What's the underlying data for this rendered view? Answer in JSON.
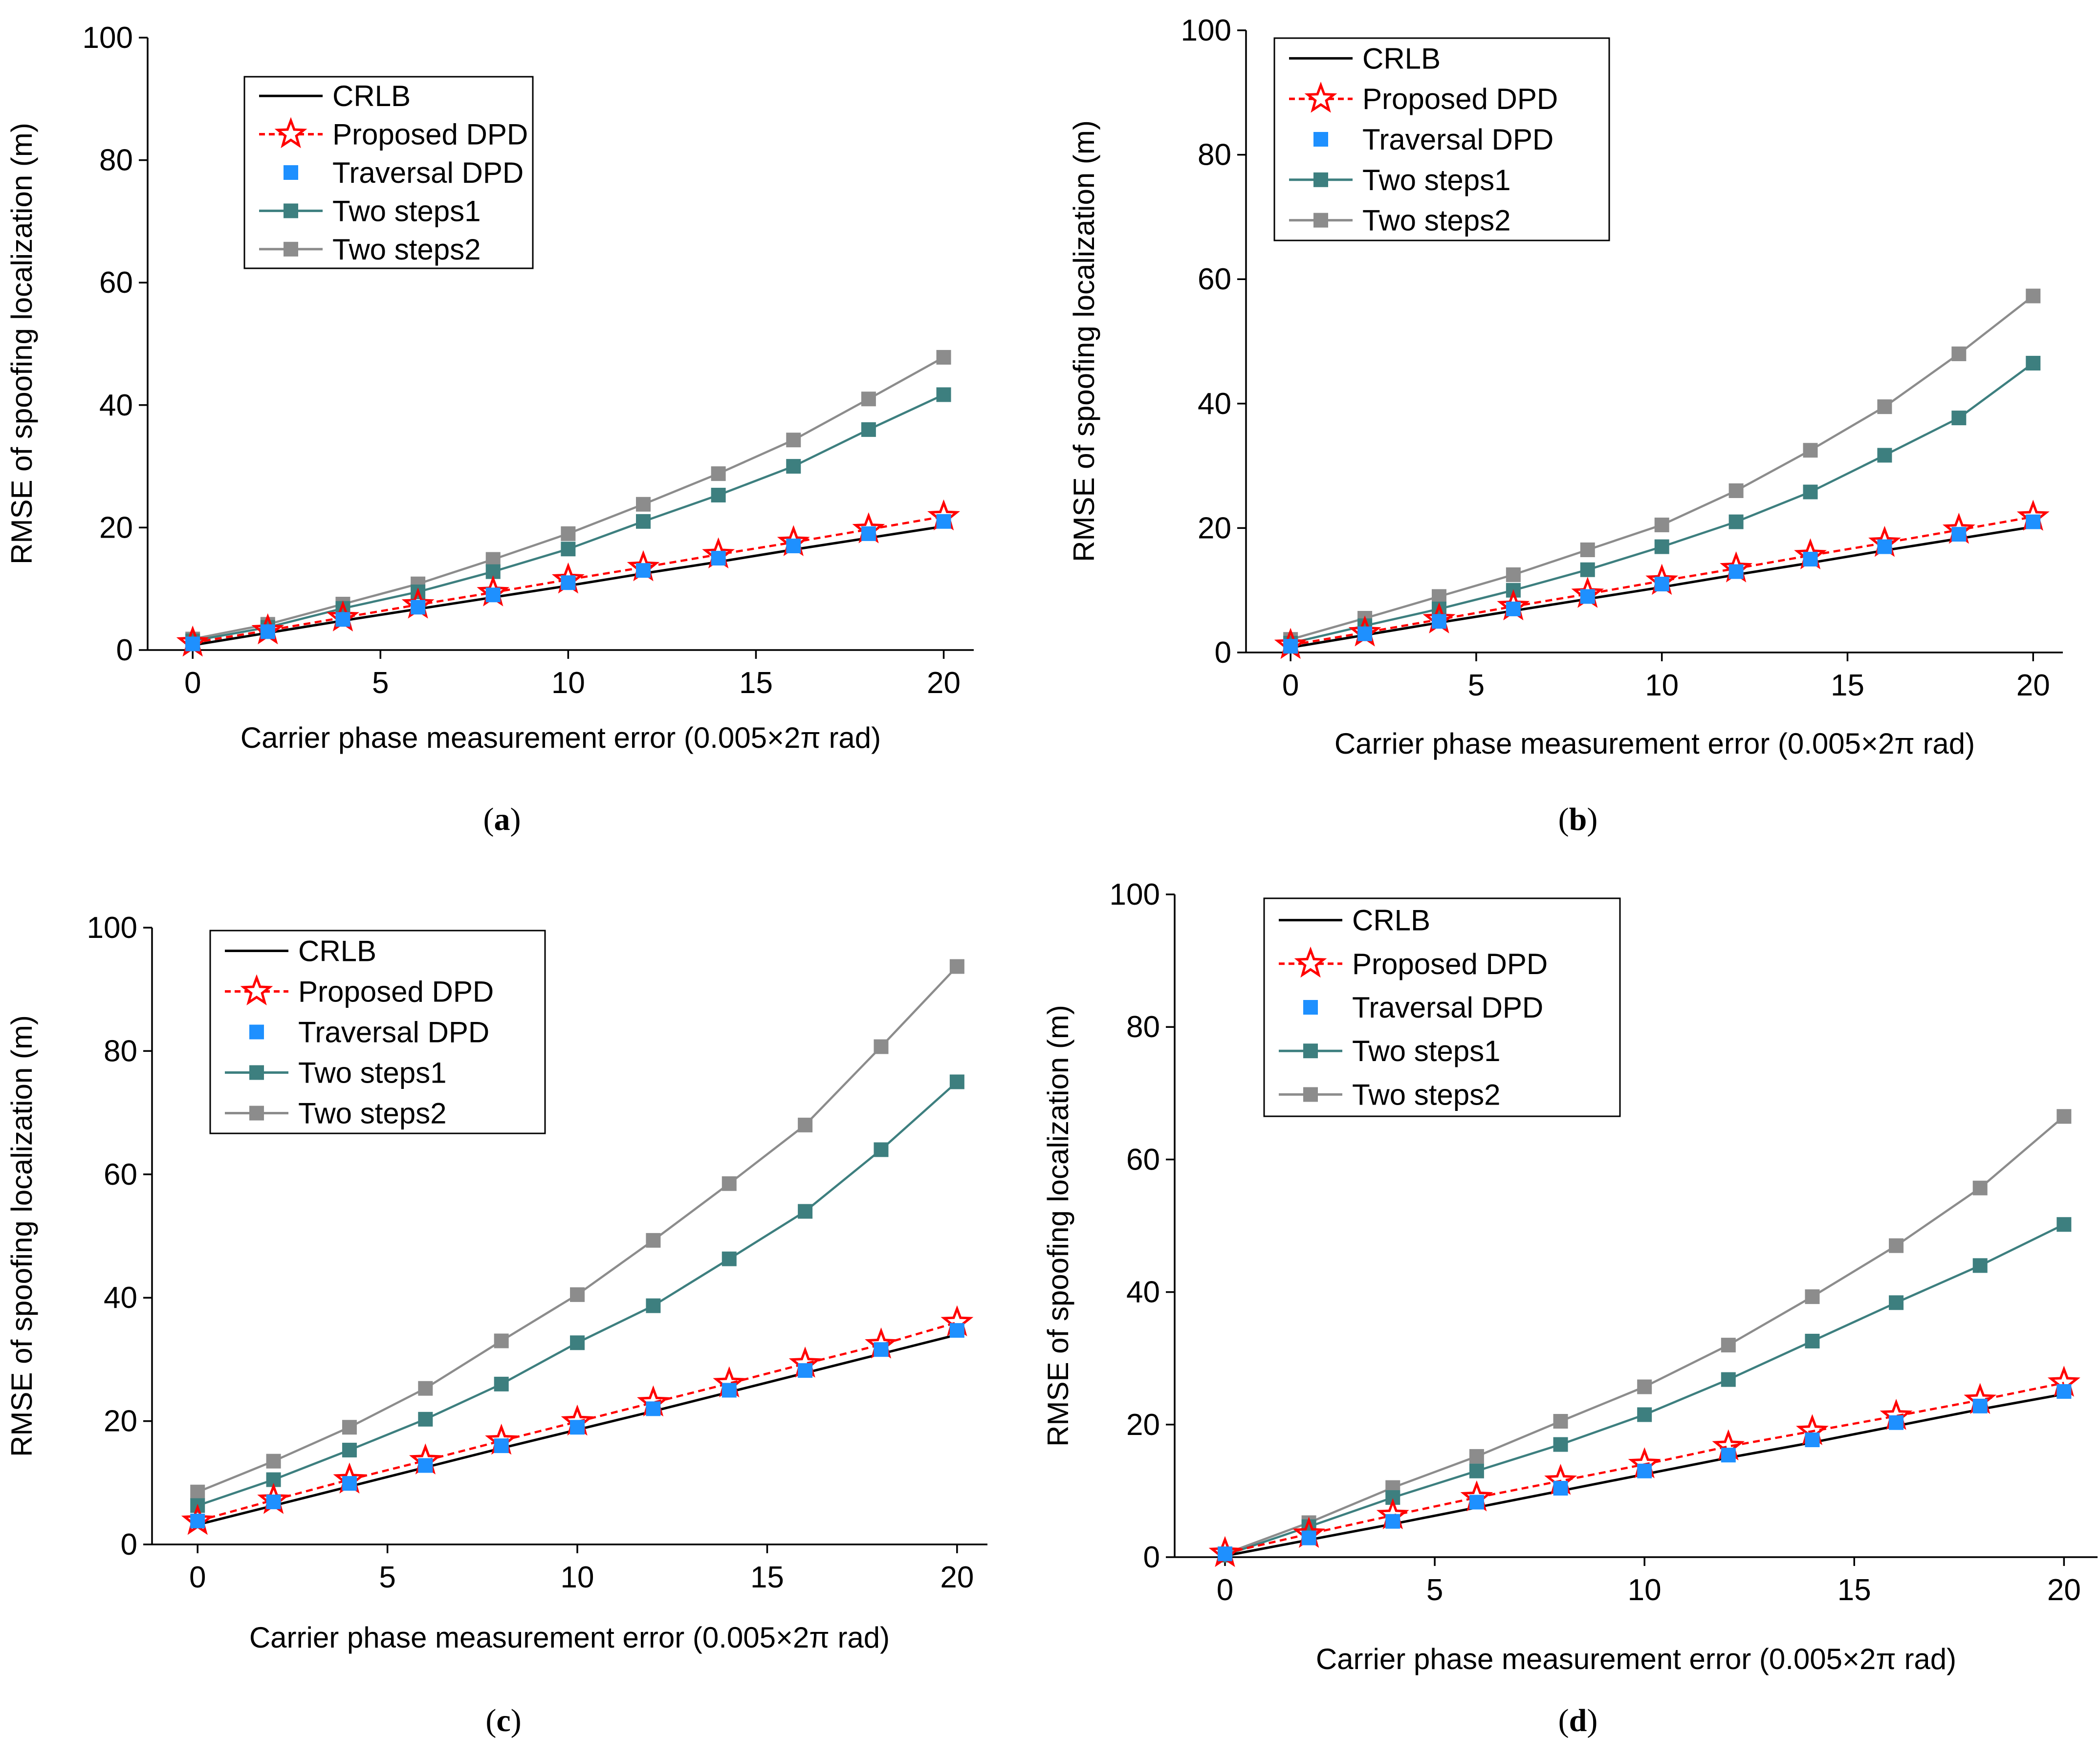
{
  "series_styles": [
    {
      "name": "CRLB",
      "color": "#000000",
      "marker": "none",
      "dash": false
    },
    {
      "name": "Proposed DPD",
      "color": "#ff0000",
      "marker": "star",
      "dash": true
    },
    {
      "name": "Traversal DPD",
      "color": "#1e90ff",
      "marker": "square-only",
      "dash": false
    },
    {
      "name": "Two steps1",
      "color": "#3d7f7f",
      "marker": "square",
      "dash": false
    },
    {
      "name": "Two steps2",
      "color": "#8c8c8c",
      "marker": "square",
      "dash": false
    }
  ],
  "chart_data": [
    {
      "panel": "a",
      "caption_letter": "a",
      "type": "line",
      "xlabel": "Carrier phase measurement error (0.005×2π rad)",
      "ylabel": "RMSE of spoofing localization (m)",
      "xlim": [
        -1.2,
        20.8
      ],
      "ylim": [
        0,
        100
      ],
      "xticks": [
        0,
        5,
        10,
        15,
        20
      ],
      "yticks": [
        0,
        20,
        40,
        60,
        80,
        100
      ],
      "legend_position": "top-left",
      "x": [
        0,
        2,
        4,
        6,
        8,
        10,
        12,
        14,
        16,
        18,
        20
      ],
      "series": [
        {
          "name": "CRLB",
          "values": [
            0.8,
            2.8,
            4.8,
            6.7,
            8.6,
            10.5,
            12.5,
            14.4,
            16.4,
            18.3,
            20.2
          ]
        },
        {
          "name": "Proposed DPD",
          "values": [
            1.2,
            3.2,
            5.3,
            7.4,
            9.4,
            11.5,
            13.5,
            15.6,
            17.6,
            19.7,
            21.8
          ]
        },
        {
          "name": "Traversal DPD",
          "values": [
            1.0,
            3.0,
            5.0,
            7.0,
            9.0,
            11.0,
            13.0,
            15.0,
            17.0,
            19.0,
            21.0
          ]
        },
        {
          "name": "Two steps1",
          "values": [
            1.5,
            3.7,
            6.8,
            9.5,
            12.8,
            16.5,
            21.0,
            25.3,
            30.0,
            36.0,
            41.7
          ]
        },
        {
          "name": "Two steps2",
          "values": [
            1.8,
            4.2,
            7.5,
            10.8,
            14.8,
            19.0,
            23.8,
            28.8,
            34.3,
            41.0,
            47.8
          ]
        }
      ]
    },
    {
      "panel": "b",
      "caption_letter": "b",
      "type": "line",
      "xlabel": "Carrier phase measurement error (0.005×2π rad)",
      "ylabel": "RMSE of spoofing localization (m)",
      "xlim": [
        -1.2,
        20.8
      ],
      "ylim": [
        0,
        100
      ],
      "xticks": [
        0,
        5,
        10,
        15,
        20
      ],
      "yticks": [
        0,
        20,
        40,
        60,
        80,
        100
      ],
      "legend_position": "top-left",
      "x": [
        0,
        2,
        4,
        6,
        8,
        10,
        12,
        14,
        16,
        18,
        20
      ],
      "series": [
        {
          "name": "CRLB",
          "values": [
            0.8,
            2.8,
            4.8,
            6.7,
            8.6,
            10.5,
            12.5,
            14.4,
            16.4,
            18.3,
            20.2
          ]
        },
        {
          "name": "Proposed DPD",
          "values": [
            1.2,
            3.2,
            5.3,
            7.4,
            9.4,
            11.5,
            13.5,
            15.6,
            17.6,
            19.7,
            21.8
          ]
        },
        {
          "name": "Traversal DPD",
          "values": [
            1.0,
            3.0,
            5.0,
            7.0,
            9.0,
            11.0,
            13.0,
            15.0,
            17.0,
            19.0,
            21.0
          ]
        },
        {
          "name": "Two steps1",
          "values": [
            1.5,
            4.3,
            7.0,
            10.0,
            13.3,
            17.0,
            21.0,
            25.8,
            31.7,
            37.7,
            46.5
          ]
        },
        {
          "name": "Two steps2",
          "values": [
            2.1,
            5.5,
            9.0,
            12.5,
            16.5,
            20.5,
            26.0,
            32.5,
            39.5,
            48.0,
            57.3
          ]
        }
      ]
    },
    {
      "panel": "c",
      "caption_letter": "c",
      "type": "line",
      "xlabel": "Carrier phase measurement error (0.005×2π rad)",
      "ylabel": "RMSE of spoofing localization (m)",
      "xlim": [
        -1.2,
        20.8
      ],
      "ylim": [
        0,
        100
      ],
      "xticks": [
        0,
        5,
        10,
        15,
        20
      ],
      "yticks": [
        0,
        20,
        40,
        60,
        80,
        100
      ],
      "legend_position": "top-left",
      "x": [
        0,
        2,
        4,
        6,
        8,
        10,
        12,
        14,
        16,
        18,
        20
      ],
      "series": [
        {
          "name": "CRLB",
          "values": [
            3.2,
            6.3,
            9.4,
            12.5,
            15.6,
            18.6,
            21.6,
            24.7,
            27.8,
            30.9,
            34.0
          ]
        },
        {
          "name": "Proposed DPD",
          "values": [
            3.8,
            7.2,
            10.5,
            13.6,
            16.8,
            19.9,
            23.0,
            26.1,
            29.3,
            32.4,
            36.0
          ]
        },
        {
          "name": "Traversal DPD",
          "values": [
            3.8,
            6.9,
            9.9,
            12.8,
            16.0,
            19.0,
            22.0,
            25.0,
            28.2,
            31.6,
            34.7
          ]
        },
        {
          "name": "Two steps1",
          "values": [
            6.3,
            10.5,
            15.3,
            20.3,
            26.0,
            32.7,
            38.7,
            46.3,
            54.0,
            64.0,
            75.0
          ]
        },
        {
          "name": "Two steps2",
          "values": [
            8.5,
            13.5,
            19.0,
            25.3,
            33.0,
            40.5,
            49.3,
            58.5,
            68.0,
            80.7,
            93.7
          ]
        }
      ]
    },
    {
      "panel": "d",
      "caption_letter": "d",
      "type": "line",
      "xlabel": "Carrier phase measurement error (0.005×2π rad)",
      "ylabel": "RMSE of spoofing localization (m)",
      "xlim": [
        -1.2,
        20.8
      ],
      "ylim": [
        0,
        100
      ],
      "xticks": [
        0,
        5,
        10,
        15,
        20
      ],
      "yticks": [
        0,
        20,
        40,
        60,
        80,
        100
      ],
      "legend_position": "top-left",
      "x": [
        0,
        2,
        4,
        6,
        8,
        10,
        12,
        14,
        16,
        18,
        20
      ],
      "series": [
        {
          "name": "CRLB",
          "values": [
            0.2,
            2.6,
            5.0,
            7.5,
            10.0,
            12.5,
            15.0,
            17.3,
            19.8,
            22.3,
            24.6
          ]
        },
        {
          "name": "Proposed DPD",
          "values": [
            0.6,
            3.5,
            6.3,
            9.0,
            11.5,
            14.0,
            16.7,
            19.0,
            21.3,
            23.7,
            26.3
          ]
        },
        {
          "name": "Traversal DPD",
          "values": [
            0.5,
            2.9,
            5.4,
            8.3,
            10.4,
            13.0,
            15.4,
            17.7,
            20.3,
            22.8,
            25.0
          ]
        },
        {
          "name": "Two steps1",
          "values": [
            0.3,
            4.6,
            9.0,
            13.0,
            17.0,
            21.5,
            26.8,
            32.6,
            38.4,
            44.0,
            50.2
          ]
        },
        {
          "name": "Two steps2",
          "values": [
            0.5,
            5.2,
            10.5,
            15.2,
            20.5,
            25.7,
            32.0,
            39.3,
            47.0,
            55.7,
            66.5
          ]
        }
      ]
    }
  ]
}
